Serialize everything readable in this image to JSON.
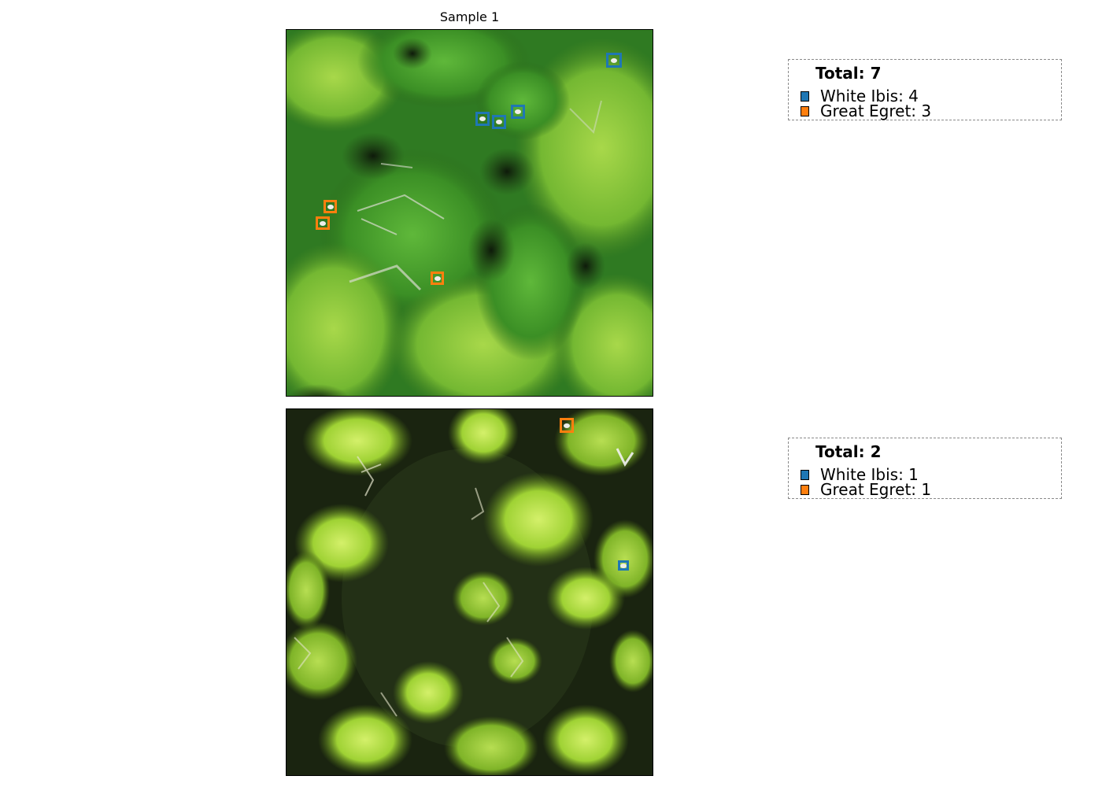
{
  "figure": {
    "title": "Sample 1"
  },
  "classes": [
    {
      "name": "White Ibis",
      "color": "#1f77b4"
    },
    {
      "name": "Great Egret",
      "color": "#ff7f0e"
    }
  ],
  "samples": [
    {
      "panel": "top",
      "scene": "dense-green-canopy",
      "legend": {
        "total": "Total: 7",
        "entries": [
          "White Ibis: 4",
          "Great Egret: 3"
        ]
      },
      "detections": [
        {
          "class": "White Ibis"
        },
        {
          "class": "White Ibis"
        },
        {
          "class": "White Ibis"
        },
        {
          "class": "White Ibis"
        },
        {
          "class": "Great Egret"
        },
        {
          "class": "Great Egret"
        },
        {
          "class": "Great Egret"
        }
      ]
    },
    {
      "panel": "bottom",
      "scene": "dark-understory-with-yellow-green-crowns",
      "legend": {
        "total": "Total: 2",
        "entries": [
          "White Ibis: 1",
          "Great Egret: 1"
        ]
      },
      "detections": [
        {
          "class": "Great Egret"
        },
        {
          "class": "White Ibis"
        }
      ]
    }
  ]
}
